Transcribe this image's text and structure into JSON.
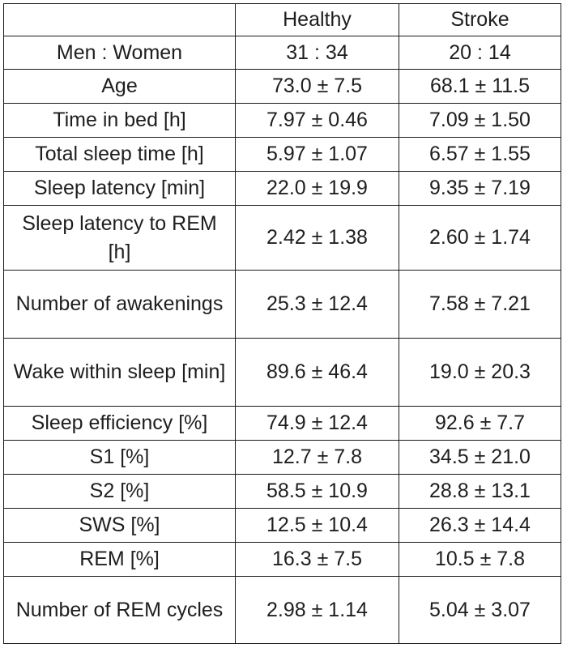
{
  "table": {
    "headers": [
      "",
      "Healthy",
      "Stroke"
    ],
    "rows": [
      {
        "label": "Men : Women",
        "healthy": "31 : 34",
        "stroke": "20 : 14"
      },
      {
        "label": "Age",
        "healthy": "73.0 ± 7.5",
        "stroke": "68.1 ± 11.5"
      },
      {
        "label": "Time in bed [h]",
        "healthy": "7.97 ± 0.46",
        "stroke": "7.09 ± 1.50"
      },
      {
        "label": "Total sleep time [h]",
        "healthy": "5.97 ± 1.07",
        "stroke": "6.57 ± 1.55"
      },
      {
        "label": "Sleep latency [min]",
        "healthy": "22.0 ± 19.9",
        "stroke": "9.35 ± 7.19"
      },
      {
        "label": "Sleep latency to REM [h]",
        "healthy": "2.42 ± 1.38",
        "stroke": "2.60 ± 1.74"
      },
      {
        "label": "Number of awakenings",
        "healthy": "25.3 ± 12.4",
        "stroke": "7.58 ± 7.21"
      },
      {
        "label": "Wake within sleep [min]",
        "healthy": "89.6 ± 46.4",
        "stroke": "19.0 ± 20.3"
      },
      {
        "label": "Sleep efficiency [%]",
        "healthy": "74.9 ± 12.4",
        "stroke": "92.6 ± 7.7"
      },
      {
        "label": "S1 [%]",
        "healthy": "12.7 ± 7.8",
        "stroke": "34.5 ± 21.0"
      },
      {
        "label": "S2 [%]",
        "healthy": "58.5 ± 10.9",
        "stroke": "28.8 ± 13.1"
      },
      {
        "label": "SWS [%]",
        "healthy": "12.5 ± 10.4",
        "stroke": "26.3 ± 14.4"
      },
      {
        "label": "REM [%]",
        "healthy": "16.3 ± 7.5",
        "stroke": "10.5 ± 7.8"
      },
      {
        "label": "Number of REM cycles",
        "healthy": "2.98 ± 1.14",
        "stroke": "5.04 ± 3.07"
      }
    ]
  }
}
